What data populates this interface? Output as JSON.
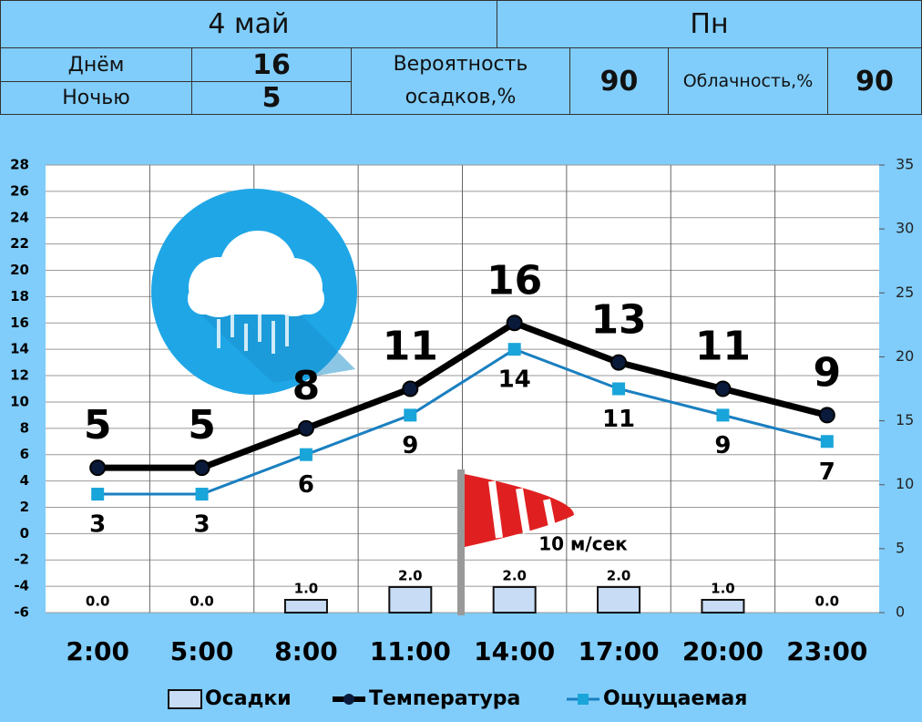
{
  "header": {
    "date": "4 май",
    "weekday": "Пн",
    "day_label": "Днём",
    "day_temp": 16,
    "night_label": "Ночью",
    "night_temp": 5,
    "precip_prob_label": "Вероятность осадков,%",
    "precip_prob": 90,
    "cloud_label": "Облачность,%",
    "cloud": 90
  },
  "chart_data": {
    "type": "combo",
    "categories": [
      "2:00",
      "5:00",
      "8:00",
      "11:00",
      "14:00",
      "17:00",
      "20:00",
      "23:00"
    ],
    "ylim": [
      -6,
      28
    ],
    "yticks": [
      -6,
      -4,
      -2,
      0,
      2,
      4,
      6,
      8,
      10,
      12,
      14,
      16,
      18,
      20,
      22,
      24,
      26,
      28
    ],
    "y2lim": [
      0,
      35
    ],
    "y2ticks": [
      0,
      5,
      10,
      15,
      20,
      25,
      30,
      35
    ],
    "grid": true,
    "series": [
      {
        "name": "Осадки",
        "type": "bar",
        "axis": "y2",
        "color": "#c8dcf5",
        "values": [
          0,
          0,
          1,
          2,
          2,
          2,
          1,
          0
        ],
        "value_labels": [
          "0.0",
          "0.0",
          "1.0",
          "2.0",
          "2.0",
          "2.0",
          "1.0",
          "0.0"
        ]
      },
      {
        "name": "Температура",
        "type": "line",
        "color": "#000000",
        "values": [
          5,
          5,
          8,
          11,
          16,
          13,
          11,
          9
        ]
      },
      {
        "name": "Ощущаемая",
        "type": "line",
        "color": "#1a7fc0",
        "values": [
          3,
          3,
          6,
          9,
          14,
          11,
          9,
          7
        ]
      }
    ],
    "annotation": "10 м/сек"
  }
}
